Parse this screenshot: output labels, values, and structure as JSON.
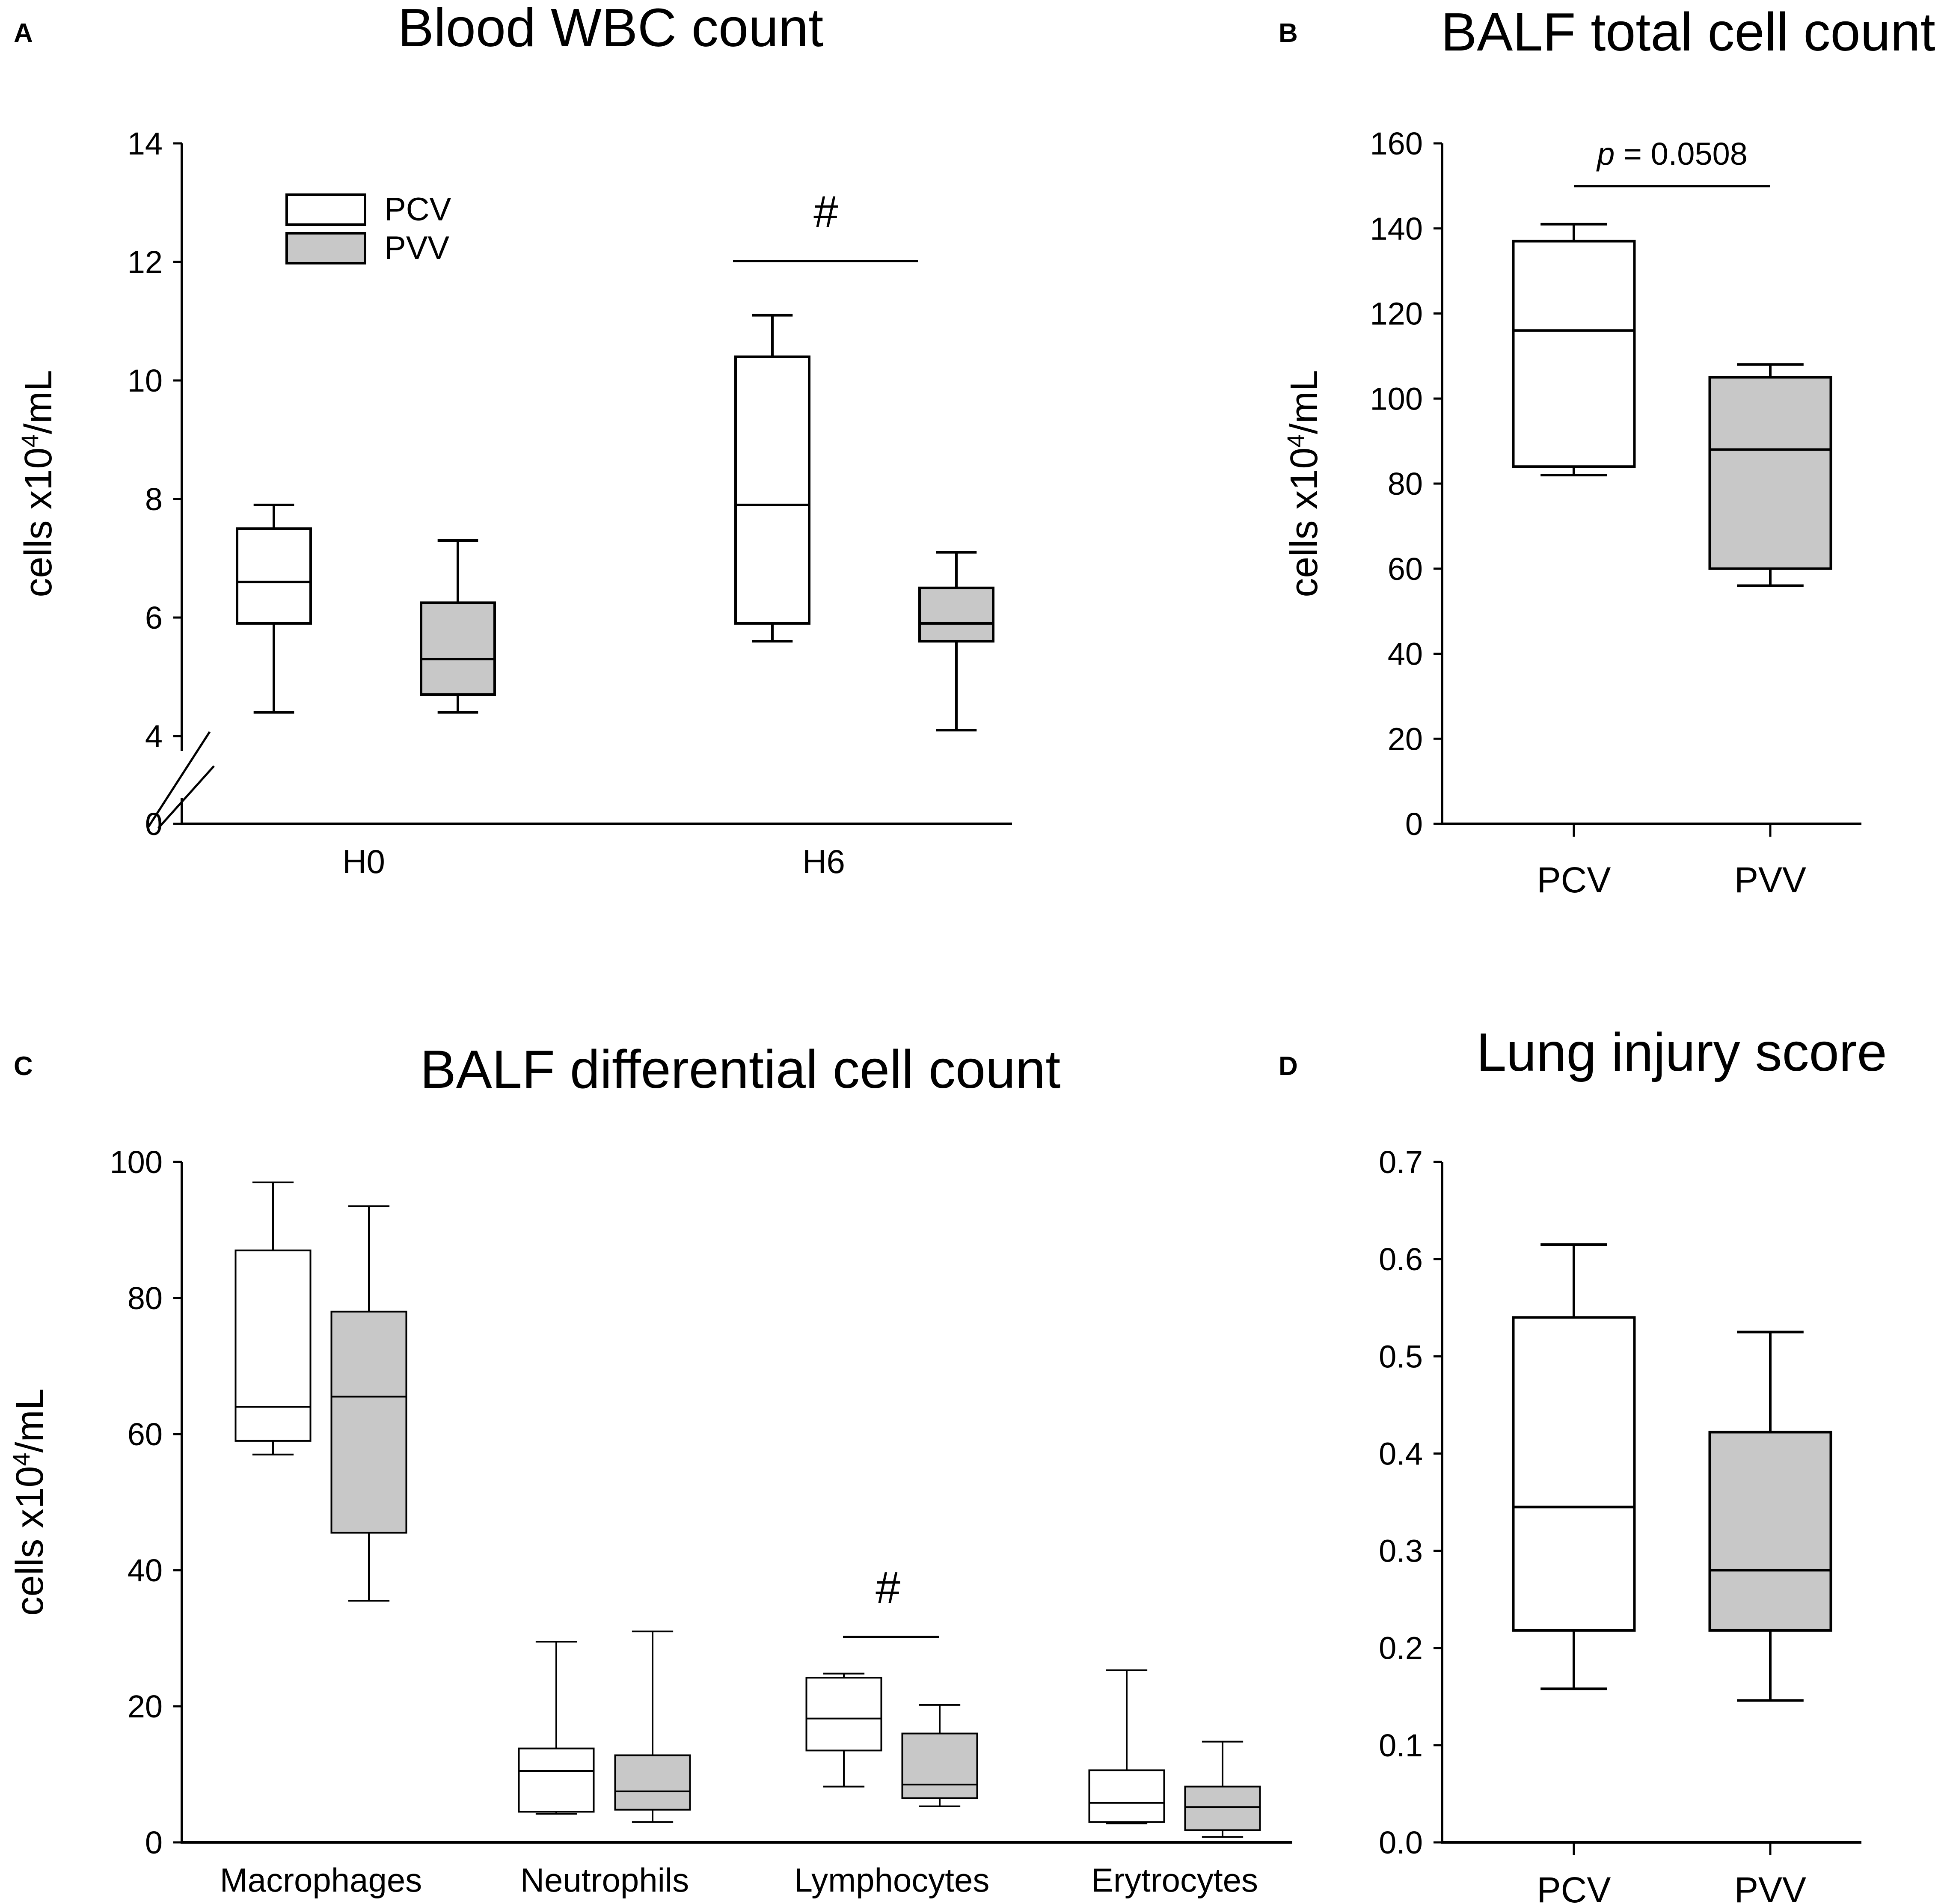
{
  "chart_data": [
    {
      "id": "A",
      "panel_label": "A",
      "type": "box",
      "title": "Blood WBC count",
      "ylabel": "cells x10",
      "ylabel_exp": "4",
      "ylabel_unit": "/mL",
      "ylim": [
        0,
        14
      ],
      "axis_break": [
        0,
        4
      ],
      "yticks": [
        "0",
        "4",
        "6",
        "8",
        "10",
        "12",
        "14"
      ],
      "categories": [
        "H0",
        "H6"
      ],
      "legend": [
        {
          "name": "PCV",
          "color": "#ffffff"
        },
        {
          "name": "PVV",
          "color": "#c8c8c8"
        }
      ],
      "series": [
        {
          "name": "PCV",
          "color": "#ffffff",
          "boxes": [
            {
              "min": 4.4,
              "q1": 5.9,
              "median": 6.6,
              "q3": 7.5,
              "max": 7.9
            },
            {
              "min": 5.6,
              "q1": 5.9,
              "median": 7.9,
              "q3": 10.4,
              "max": 11.1
            }
          ]
        },
        {
          "name": "PVV",
          "color": "#c8c8c8",
          "boxes": [
            {
              "min": 4.4,
              "q1": 4.7,
              "median": 5.3,
              "q3": 6.25,
              "max": 7.3
            },
            {
              "min": 4.1,
              "q1": 5.6,
              "median": 5.9,
              "q3": 6.5,
              "max": 7.1
            }
          ]
        }
      ],
      "annotations": [
        {
          "category": "H6",
          "label": "#",
          "y": 12
        }
      ]
    },
    {
      "id": "B",
      "panel_label": "B",
      "type": "box",
      "title": "BALF total cell count",
      "ylabel": "cells x10",
      "ylabel_exp": "4",
      "ylabel_unit": "/mL",
      "ylim": [
        0,
        160
      ],
      "yticks": [
        "0",
        "20",
        "40",
        "60",
        "80",
        "100",
        "120",
        "140",
        "160"
      ],
      "categories": [
        "PCV",
        "PVV"
      ],
      "series": [
        {
          "name": "PCV",
          "color": "#ffffff",
          "boxes": [
            {
              "min": 82,
              "q1": 84,
              "median": 116,
              "q3": 137,
              "max": 141
            }
          ]
        },
        {
          "name": "PVV",
          "color": "#c8c8c8",
          "boxes": [
            {
              "min": 56,
              "q1": 60,
              "median": 88,
              "q3": 105,
              "max": 108
            }
          ]
        }
      ],
      "annotations": [
        {
          "label_italic": "p",
          "label": " = 0.0508",
          "y": 150
        }
      ]
    },
    {
      "id": "C",
      "panel_label": "C",
      "type": "box",
      "title": "BALF differential cell count",
      "ylabel": "cells x10",
      "ylabel_exp": "4",
      "ylabel_unit": "/mL",
      "ylim": [
        0,
        100
      ],
      "yticks": [
        "0",
        "20",
        "40",
        "60",
        "80",
        "100"
      ],
      "categories": [
        "Macrophages",
        "Neutrophils",
        "Lymphocytes",
        "Erytrocytes"
      ],
      "series": [
        {
          "name": "PCV",
          "color": "#ffffff",
          "boxes": [
            {
              "min": 57,
              "q1": 59,
              "median": 64,
              "q3": 87,
              "max": 97
            },
            {
              "min": 4.2,
              "q1": 4.5,
              "median": 10.5,
              "q3": 13.8,
              "max": 29.5
            },
            {
              "min": 8.2,
              "q1": 13.5,
              "median": 18.2,
              "q3": 24.2,
              "max": 24.8
            },
            {
              "min": 2.8,
              "q1": 3.0,
              "median": 5.8,
              "q3": 10.6,
              "max": 25.3
            }
          ]
        },
        {
          "name": "PVV",
          "color": "#c8c8c8",
          "boxes": [
            {
              "min": 35.5,
              "q1": 45.5,
              "median": 65.5,
              "q3": 78,
              "max": 93.5
            },
            {
              "min": 3.0,
              "q1": 4.8,
              "median": 7.5,
              "q3": 12.8,
              "max": 31
            },
            {
              "min": 5.3,
              "q1": 6.5,
              "median": 8.5,
              "q3": 16,
              "max": 20.2
            },
            {
              "min": 0.8,
              "q1": 1.8,
              "median": 5.2,
              "q3": 8.2,
              "max": 14.8
            }
          ]
        }
      ],
      "annotations": [
        {
          "category": "Lymphocytes",
          "label": "#",
          "y": 30
        }
      ]
    },
    {
      "id": "D",
      "panel_label": "D",
      "type": "box",
      "title": "Lung injury score",
      "ylabel": "",
      "ylim": [
        0,
        0.7
      ],
      "yticks": [
        "0.0",
        "0.1",
        "0.2",
        "0.3",
        "0.4",
        "0.5",
        "0.6",
        "0.7"
      ],
      "categories": [
        "PCV",
        "PVV"
      ],
      "series": [
        {
          "name": "PCV",
          "color": "#ffffff",
          "boxes": [
            {
              "min": 0.158,
              "q1": 0.218,
              "median": 0.345,
              "q3": 0.54,
              "max": 0.615
            }
          ]
        },
        {
          "name": "PVV",
          "color": "#c8c8c8",
          "boxes": [
            {
              "min": 0.146,
              "q1": 0.218,
              "median": 0.28,
              "q3": 0.422,
              "max": 0.525
            }
          ]
        }
      ],
      "annotations": []
    }
  ]
}
